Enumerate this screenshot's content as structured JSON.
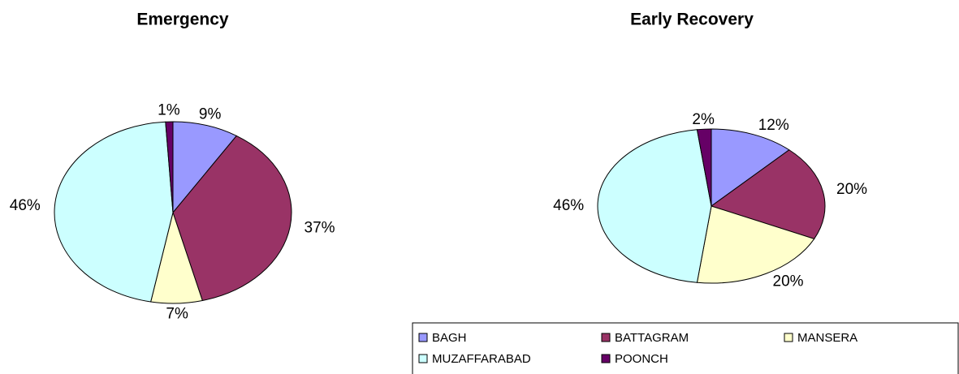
{
  "chart_data": [
    {
      "type": "pie",
      "title": "Emergency",
      "categories": [
        "BAGH",
        "BATTAGRAM",
        "MANSERA",
        "MUZAFFARABAD",
        "POONCH"
      ],
      "values": [
        9,
        37,
        7,
        46,
        1
      ],
      "value_labels": [
        "9%",
        "37%",
        "7%",
        "46%",
        "1%"
      ],
      "colors": [
        "#9999ff",
        "#993366",
        "#ffffcc",
        "#ccffff",
        "#660066"
      ]
    },
    {
      "type": "pie",
      "title": "Early Recovery",
      "categories": [
        "BAGH",
        "BATTAGRAM",
        "MANSERA",
        "MUZAFFARABAD",
        "POONCH"
      ],
      "values": [
        12,
        20,
        20,
        46,
        2
      ],
      "value_labels": [
        "12%",
        "20%",
        "20%",
        "46%",
        "2%"
      ],
      "colors": [
        "#9999ff",
        "#993366",
        "#ffffcc",
        "#ccffff",
        "#660066"
      ],
      "legend": "bottom"
    }
  ]
}
